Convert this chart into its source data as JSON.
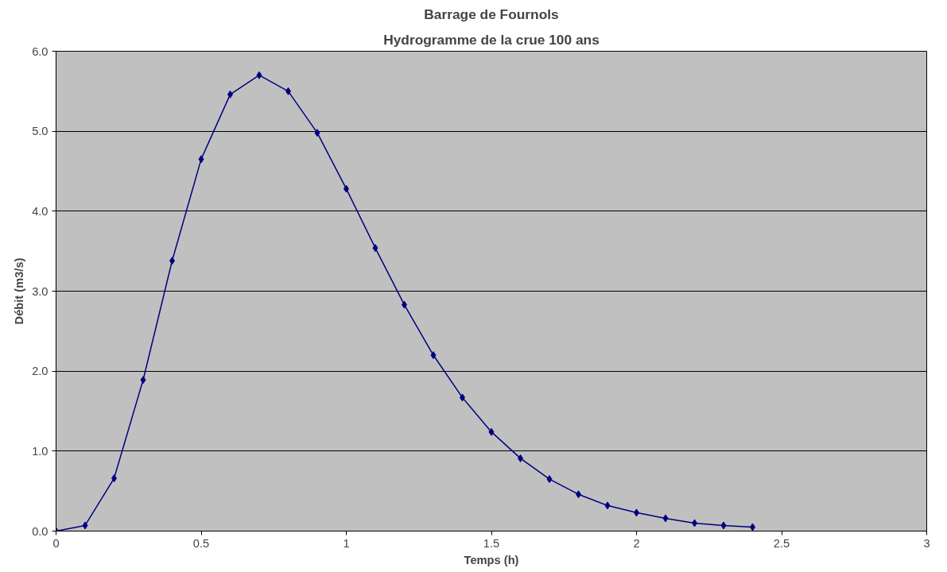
{
  "chart_data": {
    "type": "line",
    "title": "Barrage de Fournols",
    "subtitle": "Hydrogramme de la crue 100 ans",
    "xlabel": "Temps (h)",
    "ylabel": "Débit (m3/s)",
    "x": [
      0,
      0.1,
      0.2,
      0.3,
      0.4,
      0.5,
      0.6,
      0.7,
      0.8,
      0.9,
      1.0,
      1.1,
      1.2,
      1.3,
      1.4,
      1.5,
      1.6,
      1.7,
      1.8,
      1.9,
      2.0,
      2.1,
      2.2,
      2.3,
      2.4
    ],
    "series": [
      {
        "color": "#000080",
        "values": [
          0,
          0.07,
          0.66,
          1.89,
          3.38,
          4.65,
          5.46,
          5.7,
          5.5,
          4.98,
          4.28,
          3.54,
          2.83,
          2.2,
          1.67,
          1.24,
          0.91,
          0.65,
          0.46,
          0.32,
          0.23,
          0.16,
          0.1,
          0.07,
          0.05
        ]
      }
    ],
    "xlim": [
      0,
      3
    ],
    "xticks": [
      0,
      0.5,
      1,
      1.5,
      2,
      2.5,
      3
    ],
    "ylim": [
      0,
      6
    ],
    "yticks": [
      {
        "value": 0,
        "label": "0.0"
      },
      {
        "value": 1,
        "label": "1.0"
      },
      {
        "value": 2,
        "label": "2.0"
      },
      {
        "value": 3,
        "label": "3.0"
      },
      {
        "value": 4,
        "label": "4.0"
      },
      {
        "value": 5,
        "label": "5.0"
      },
      {
        "value": 6,
        "label": "6.0"
      }
    ],
    "grid": "y",
    "marker": "diamond",
    "line_style": "solid"
  }
}
